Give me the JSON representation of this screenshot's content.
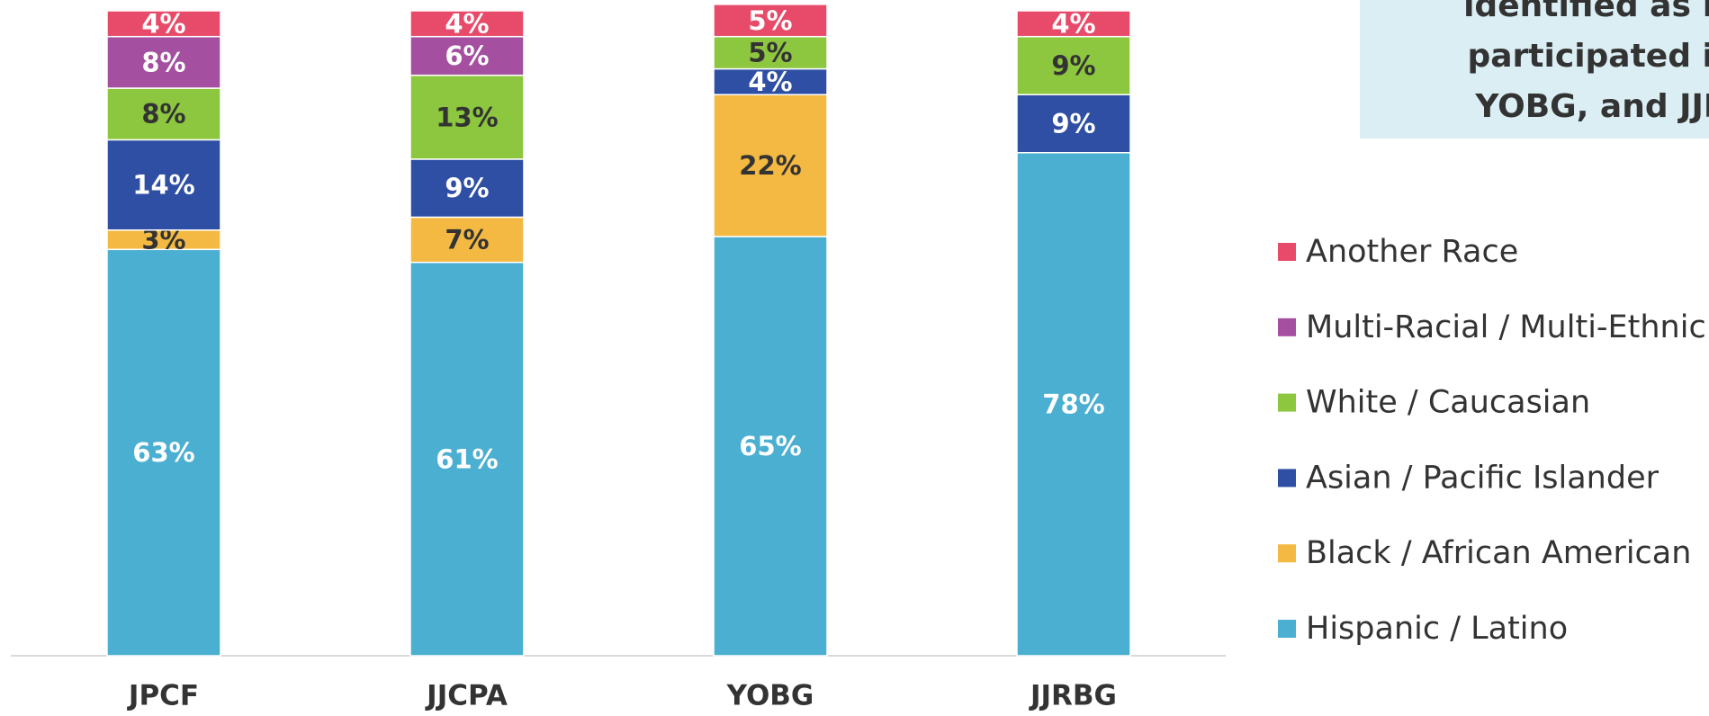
{
  "chart_data": {
    "type": "stacked_bar",
    "annotation": [
      "identified as Hi",
      "participated in",
      "YOBG, and JJR"
    ],
    "categories": [
      "JPCF",
      "JJCPA",
      "YOBG",
      "JJRBG"
    ],
    "ylim": [
      0,
      100
    ],
    "series": [
      {
        "name": "Hispanic / Latino",
        "color": "#4bafd1",
        "values": [
          63,
          61,
          65,
          78
        ],
        "value_labels": [
          "63%",
          "61%",
          "65%",
          "78%"
        ]
      },
      {
        "name": "Black / African American",
        "color": "#f4b942",
        "values": [
          3,
          7,
          22,
          0
        ],
        "value_labels": [
          "3%",
          "7%",
          "22%",
          null
        ]
      },
      {
        "name": "Asian / Pacific Islander",
        "color": "#2e4fa3",
        "values": [
          14,
          9,
          4,
          9
        ],
        "value_labels": [
          "14%",
          "9%",
          "4%",
          "9%"
        ]
      },
      {
        "name": "White / Caucasian",
        "color": "#8dc63f",
        "values": [
          8,
          13,
          5,
          9
        ],
        "value_labels": [
          "8%",
          "13%",
          "5%",
          "9%"
        ]
      },
      {
        "name": "Multi-Racial / Multi-Ethnic",
        "color": "#a44fa0",
        "values": [
          8,
          6,
          0,
          0
        ],
        "value_labels": [
          "8%",
          "6%",
          null,
          null
        ]
      },
      {
        "name": "Another Race",
        "color": "#e84b6a",
        "values": [
          4,
          4,
          5,
          4
        ],
        "value_labels": [
          "4%",
          "4%",
          "5%",
          "4%"
        ]
      }
    ]
  }
}
